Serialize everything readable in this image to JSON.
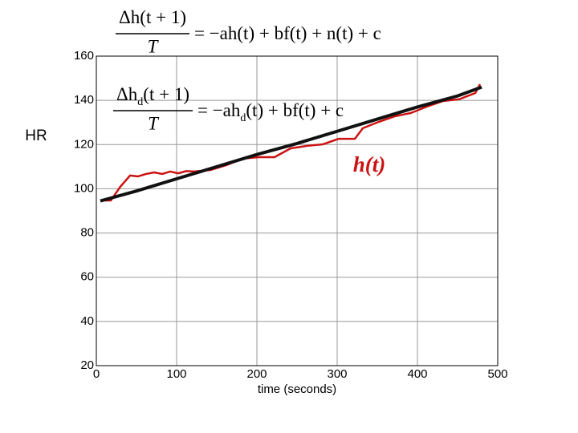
{
  "chart_data": {
    "type": "line",
    "equations": [
      {
        "numerator": [
          "Δh",
          "(t + 1)"
        ],
        "denominator": "T",
        "rhs": [
          "= −ah",
          "(t) + bf(t) + n(t) + c"
        ]
      },
      {
        "numerator": [
          "Δh",
          "d",
          "(t + 1)"
        ],
        "denominator": "T",
        "rhs": [
          "= −ah",
          "d",
          "(t) + bf(t) + c"
        ]
      }
    ],
    "y_label": "HR",
    "x_label": "time (seconds)",
    "annotation": "h(t)",
    "xlim": [
      0,
      500
    ],
    "xticks": [
      0,
      100,
      200,
      300,
      400,
      500
    ],
    "ylim": [
      20,
      160
    ],
    "yticks": [
      20,
      40,
      60,
      80,
      100,
      120,
      140,
      160
    ],
    "grid": true,
    "series": [
      {
        "color": "#cc1111",
        "x": [
          8,
          18,
          30,
          42,
          52,
          62,
          72,
          82,
          92,
          102,
          112,
          122,
          142,
          162,
          182,
          202,
          222,
          242,
          262,
          282,
          302,
          322,
          332,
          352,
          372,
          392,
          412,
          432,
          452,
          472,
          478
        ],
        "values": [
          94.7,
          94.7,
          101,
          106,
          105.6,
          106.7,
          107.4,
          106.7,
          107.8,
          107,
          108,
          107.8,
          108.5,
          110.7,
          113.6,
          114.3,
          114.3,
          118.3,
          119.4,
          120.1,
          122.6,
          122.6,
          127.4,
          130.3,
          132.8,
          134.3,
          137.2,
          139.7,
          140.5,
          143.3,
          147.3
        ]
      },
      {
        "color": "#111111",
        "x": [
          5,
          50,
          100,
          150,
          200,
          250,
          300,
          350,
          400,
          450,
          480
        ],
        "values": [
          94.5,
          99,
          104.5,
          110,
          115.5,
          120.5,
          126,
          131.5,
          137,
          142,
          146
        ]
      }
    ]
  }
}
